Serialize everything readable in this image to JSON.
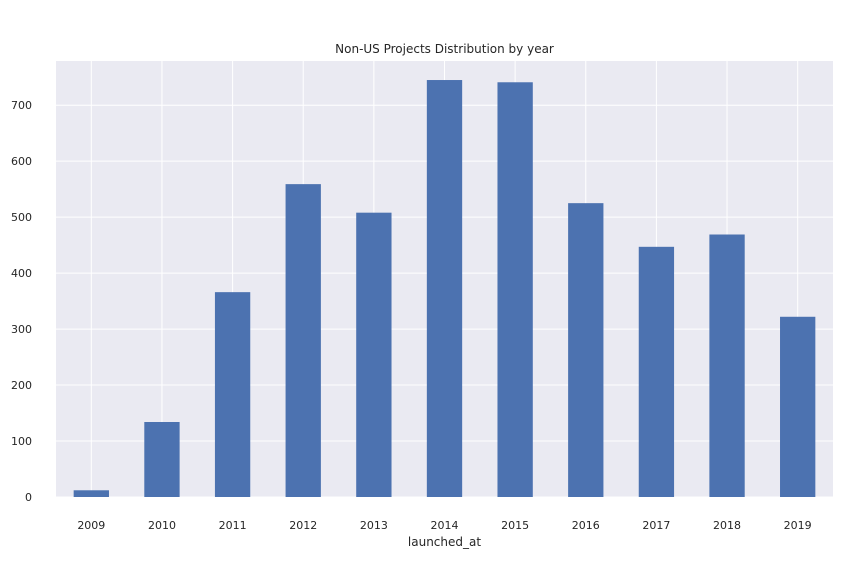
{
  "chart_data": {
    "type": "bar",
    "title": "Non-US Projects Distribution by year",
    "xlabel": "launched_at",
    "ylabel": "",
    "categories": [
      "2009",
      "2010",
      "2011",
      "2012",
      "2013",
      "2014",
      "2015",
      "2016",
      "2017",
      "2018",
      "2019"
    ],
    "values": [
      12,
      134,
      366,
      559,
      508,
      745,
      741,
      525,
      447,
      469,
      322
    ],
    "ylim": [
      0,
      779
    ],
    "yticks": [
      0,
      100,
      200,
      300,
      400,
      500,
      600,
      700
    ],
    "grid": true,
    "legend": "none",
    "colors": {
      "bar": "#4c72b0",
      "plot_background": "#eaeaf2",
      "grid": "#ffffff",
      "text": "#262626"
    }
  }
}
